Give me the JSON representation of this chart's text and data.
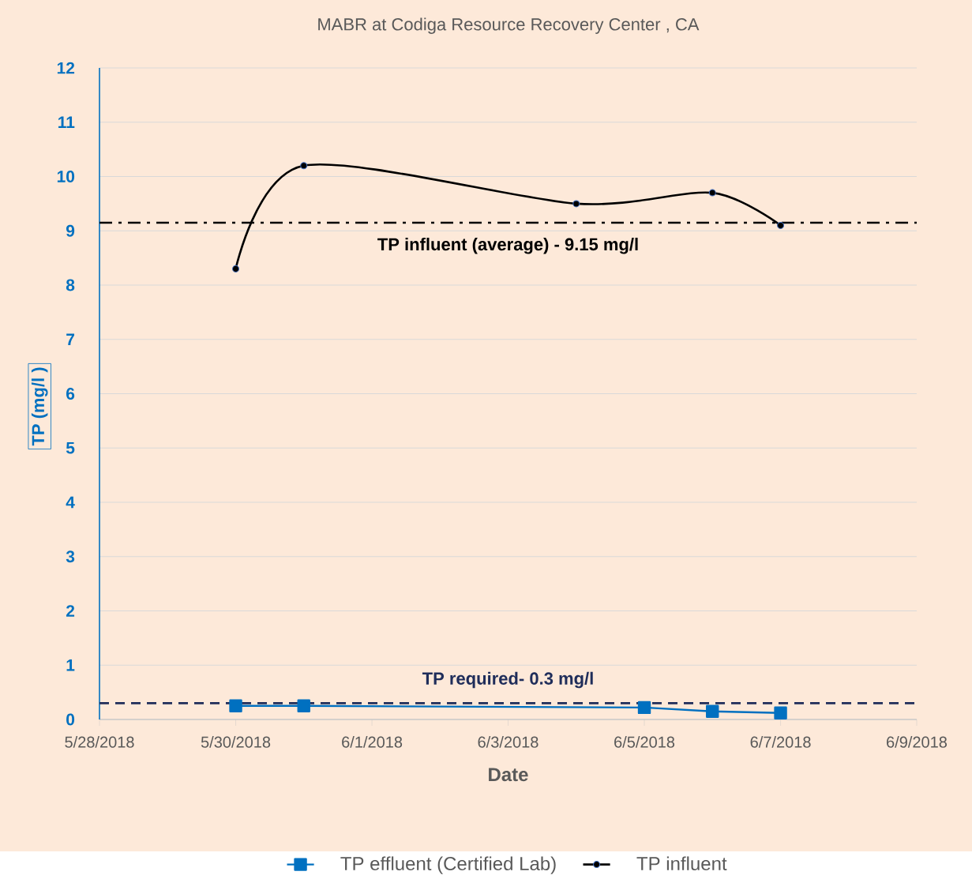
{
  "chart_data": {
    "type": "line",
    "title": "MABR at Codiga Resource Recovery Center , CA",
    "xlabel": "Date",
    "ylabel": "TP (mg/l )",
    "series": [
      {
        "name": "TP effluent (Certified Lab)",
        "color": "#0070c0",
        "marker": "square",
        "x": [
          "2018-05-30",
          "2018-05-31",
          "2018-06-05",
          "2018-06-06",
          "2018-06-07"
        ],
        "values": [
          0.25,
          0.25,
          0.22,
          0.15,
          0.12
        ]
      },
      {
        "name": "TP influent",
        "color": "#000000",
        "marker": "circle",
        "x": [
          "2018-05-30",
          "2018-05-31",
          "2018-06-04",
          "2018-06-06",
          "2018-06-07"
        ],
        "values": [
          8.3,
          10.2,
          9.5,
          9.7,
          9.1
        ]
      }
    ],
    "xlim": [
      "2018-05-28",
      "2018-06-09"
    ],
    "xticks": [
      {
        "value": "2018-05-28",
        "label": "5/28/2018"
      },
      {
        "value": "2018-05-30",
        "label": "5/30/2018"
      },
      {
        "value": "2018-06-01",
        "label": "6/1/2018"
      },
      {
        "value": "2018-06-03",
        "label": "6/3/2018"
      },
      {
        "value": "2018-06-05",
        "label": "6/5/2018"
      },
      {
        "value": "2018-06-07",
        "label": "6/7/2018"
      },
      {
        "value": "2018-06-09",
        "label": "6/9/2018"
      }
    ],
    "ylim": [
      0,
      12
    ],
    "yticks": [
      0,
      1,
      2,
      3,
      4,
      5,
      6,
      7,
      8,
      9,
      10,
      11,
      12
    ],
    "ref_lines": [
      {
        "axis": "y",
        "value": 9.15,
        "label": "TP influent (average) - 9.15 mg/l",
        "color": "#000000",
        "line_style": "dashdot"
      },
      {
        "axis": "y",
        "value": 0.3,
        "label": "TP required- 0.3 mg/l",
        "color": "#1f2d5a",
        "line_style": "dashed"
      }
    ],
    "grid": "y",
    "legend": "bottom"
  }
}
